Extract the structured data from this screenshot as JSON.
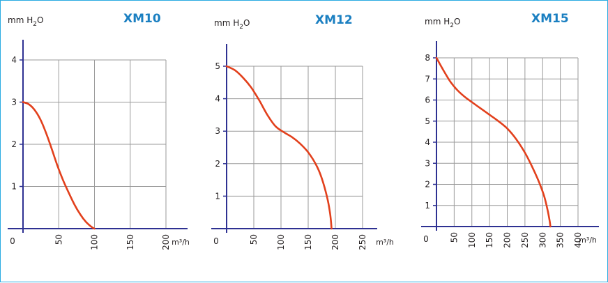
{
  "colors": {
    "border": "#29abe2",
    "axis": "#2e3192",
    "grid": "#9a9a9a",
    "curve": "#e2401c",
    "title": "#1a7fc1",
    "text": "#231f20"
  },
  "chart_data": [
    {
      "type": "line",
      "title": "XM10",
      "ylabel": "mm H2O",
      "xlabel": "m³/h",
      "xlim": [
        0,
        200
      ],
      "ylim": [
        0,
        4
      ],
      "x_ticks": [
        0,
        50,
        100,
        150,
        200
      ],
      "x_tick_labels": [
        "0",
        "50",
        "100",
        "150",
        "200"
      ],
      "y_ticks": [
        1,
        2,
        3,
        4
      ],
      "y_tick_labels": [
        "1",
        "2",
        "3",
        "4"
      ],
      "grid": true,
      "series": [
        {
          "x": [
            0,
            8,
            16,
            24,
            32,
            40,
            48,
            56,
            64,
            72,
            80,
            88,
            96,
            100
          ],
          "y": [
            3.0,
            2.95,
            2.82,
            2.6,
            2.28,
            1.9,
            1.5,
            1.15,
            0.85,
            0.57,
            0.34,
            0.16,
            0.04,
            0
          ]
        }
      ]
    },
    {
      "type": "line",
      "title": "XM12",
      "ylabel": "mm H2O",
      "xlabel": "m³/h",
      "xlim": [
        0,
        250
      ],
      "ylim": [
        0,
        5
      ],
      "x_ticks": [
        0,
        50,
        100,
        150,
        200,
        250
      ],
      "x_tick_labels": [
        "0",
        "50",
        "100",
        "150",
        "200",
        "250"
      ],
      "y_ticks": [
        1,
        2,
        3,
        4,
        5
      ],
      "y_tick_labels": [
        "1",
        "2",
        "3",
        "4",
        "5"
      ],
      "grid": true,
      "series": [
        {
          "x": [
            0,
            15,
            30,
            45,
            60,
            75,
            90,
            105,
            120,
            135,
            150,
            165,
            175,
            185,
            190,
            192,
            193
          ],
          "y": [
            5.0,
            4.88,
            4.65,
            4.35,
            3.95,
            3.5,
            3.15,
            2.97,
            2.82,
            2.62,
            2.35,
            1.95,
            1.55,
            0.95,
            0.5,
            0.2,
            0
          ]
        }
      ]
    },
    {
      "type": "line",
      "title": "XM15",
      "ylabel": "mm H2O",
      "xlabel": "m³/h",
      "xlim": [
        0,
        400
      ],
      "ylim": [
        0,
        8
      ],
      "x_ticks": [
        0,
        50,
        100,
        150,
        200,
        250,
        300,
        350,
        400
      ],
      "x_tick_labels": [
        "0",
        "50",
        "100",
        "150",
        "200",
        "250",
        "300",
        "350",
        "400"
      ],
      "y_ticks": [
        1,
        2,
        3,
        4,
        5,
        6,
        7,
        8
      ],
      "y_tick_labels": [
        "1",
        "2",
        "3",
        "4",
        "5",
        "6",
        "7",
        "8"
      ],
      "grid": true,
      "series": [
        {
          "x": [
            0,
            20,
            40,
            60,
            80,
            100,
            125,
            150,
            175,
            200,
            225,
            250,
            270,
            290,
            305,
            315,
            320,
            322
          ],
          "y": [
            8.0,
            7.4,
            6.85,
            6.45,
            6.15,
            5.9,
            5.6,
            5.3,
            5.0,
            4.65,
            4.15,
            3.5,
            2.85,
            2.1,
            1.4,
            0.7,
            0.25,
            0
          ]
        }
      ]
    }
  ]
}
